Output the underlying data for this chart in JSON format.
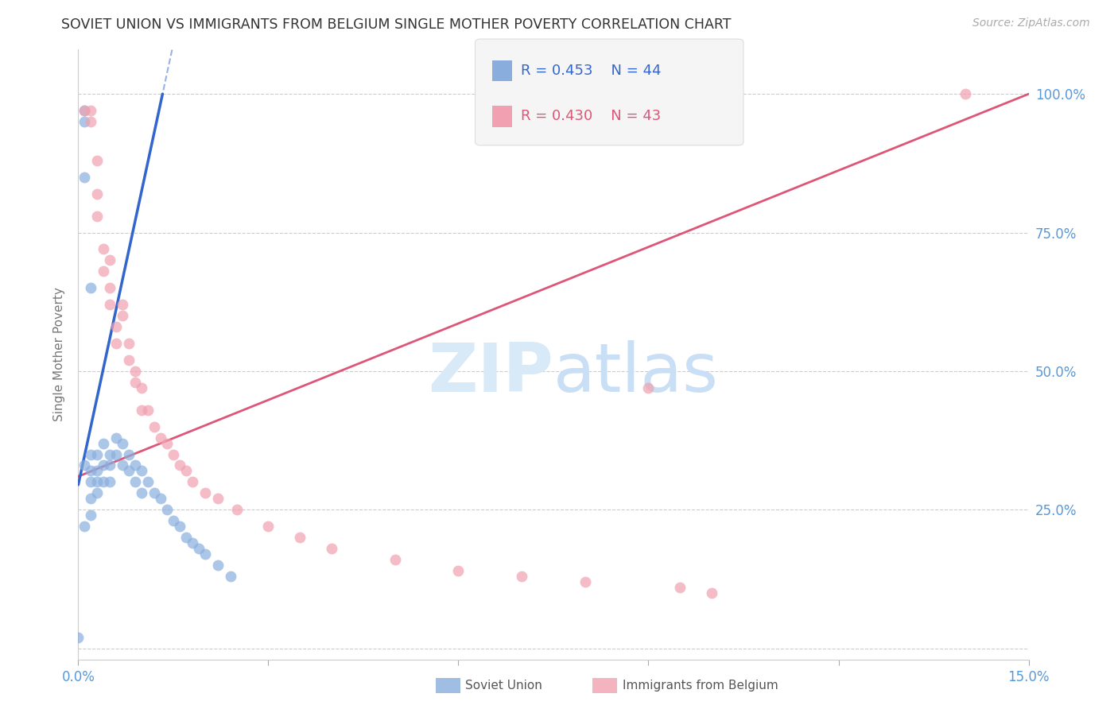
{
  "title": "SOVIET UNION VS IMMIGRANTS FROM BELGIUM SINGLE MOTHER POVERTY CORRELATION CHART",
  "source": "Source: ZipAtlas.com",
  "ylabel": "Single Mother Poverty",
  "y_ticks": [
    0.0,
    0.25,
    0.5,
    0.75,
    1.0
  ],
  "y_tick_labels": [
    "",
    "25.0%",
    "50.0%",
    "75.0%",
    "100.0%"
  ],
  "x_range": [
    0.0,
    0.15
  ],
  "y_range": [
    -0.02,
    1.08
  ],
  "soviet_R": 0.453,
  "soviet_N": 44,
  "belgium_R": 0.43,
  "belgium_N": 43,
  "soviet_color": "#89AEDD",
  "belgium_color": "#F0A0B0",
  "trendline_soviet_color": "#3366CC",
  "trendline_belgium_color": "#DD5577",
  "background_color": "#FFFFFF",
  "grid_color": "#CCCCCC",
  "title_color": "#333333",
  "source_color": "#AAAAAA",
  "axis_label_color": "#5599DD",
  "watermark_color": "#D8EAF8",
  "legend_box_color": "#F5F5F5",
  "legend_border_color": "#DDDDDD",
  "soviet_x": [
    0.0,
    0.001,
    0.001,
    0.001,
    0.001,
    0.001,
    0.002,
    0.002,
    0.002,
    0.002,
    0.002,
    0.003,
    0.003,
    0.003,
    0.003,
    0.004,
    0.004,
    0.004,
    0.005,
    0.005,
    0.005,
    0.006,
    0.006,
    0.007,
    0.007,
    0.008,
    0.008,
    0.009,
    0.009,
    0.01,
    0.01,
    0.011,
    0.012,
    0.013,
    0.014,
    0.015,
    0.016,
    0.017,
    0.018,
    0.019,
    0.02,
    0.022,
    0.024,
    0.002
  ],
  "soviet_y": [
    0.02,
    0.85,
    0.95,
    0.97,
    0.33,
    0.22,
    0.35,
    0.32,
    0.3,
    0.27,
    0.24,
    0.35,
    0.32,
    0.3,
    0.28,
    0.37,
    0.33,
    0.3,
    0.35,
    0.33,
    0.3,
    0.38,
    0.35,
    0.37,
    0.33,
    0.35,
    0.32,
    0.33,
    0.3,
    0.32,
    0.28,
    0.3,
    0.28,
    0.27,
    0.25,
    0.23,
    0.22,
    0.2,
    0.19,
    0.18,
    0.17,
    0.15,
    0.13,
    0.65
  ],
  "belgium_x": [
    0.001,
    0.002,
    0.002,
    0.003,
    0.003,
    0.004,
    0.004,
    0.005,
    0.005,
    0.005,
    0.006,
    0.006,
    0.007,
    0.007,
    0.008,
    0.008,
    0.009,
    0.009,
    0.01,
    0.01,
    0.011,
    0.012,
    0.013,
    0.014,
    0.015,
    0.016,
    0.017,
    0.018,
    0.02,
    0.022,
    0.025,
    0.03,
    0.035,
    0.04,
    0.05,
    0.06,
    0.07,
    0.08,
    0.09,
    0.095,
    0.1,
    0.14,
    0.003
  ],
  "belgium_y": [
    0.97,
    0.95,
    0.97,
    0.82,
    0.78,
    0.72,
    0.68,
    0.65,
    0.62,
    0.7,
    0.58,
    0.55,
    0.62,
    0.6,
    0.55,
    0.52,
    0.5,
    0.48,
    0.47,
    0.43,
    0.43,
    0.4,
    0.38,
    0.37,
    0.35,
    0.33,
    0.32,
    0.3,
    0.28,
    0.27,
    0.25,
    0.22,
    0.2,
    0.18,
    0.16,
    0.14,
    0.13,
    0.12,
    0.47,
    0.11,
    0.1,
    1.0,
    0.88
  ]
}
